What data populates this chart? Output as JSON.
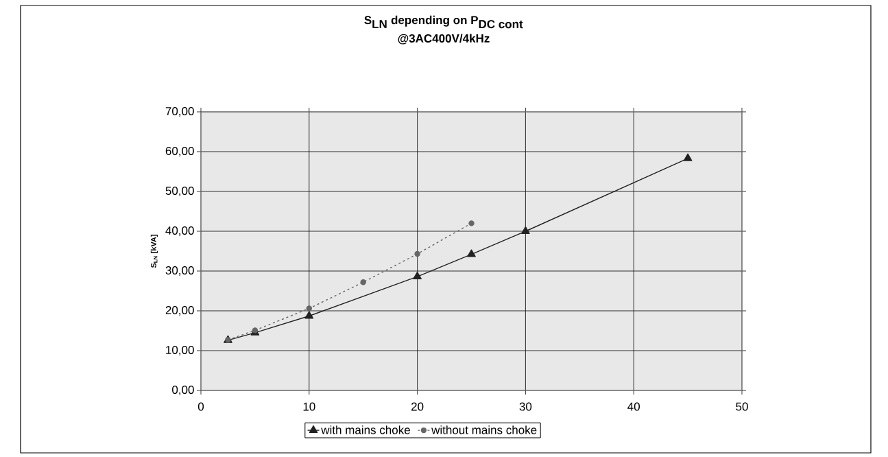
{
  "chart_data": {
    "type": "line",
    "title": "\\textbf{S}_{\\textbf{LN}}\\textbf{ depending on P}_{\\textbf{DC cont}}",
    "subtitle": "@3AC400V/4kHz",
    "ylabel": "S$_{LN}$ [kVA]",
    "xlim": [
      0,
      50
    ],
    "xticks": [
      0,
      10,
      20,
      30,
      40,
      50
    ],
    "ylim": [
      0,
      70
    ],
    "yticks": [
      {
        "value": 0,
        "label": "0,00"
      },
      {
        "value": 10,
        "label": "10,00"
      },
      {
        "value": 20,
        "label": "20,00"
      },
      {
        "value": 30,
        "label": "30,00"
      },
      {
        "value": 40,
        "label": "40,00"
      },
      {
        "value": 50,
        "label": "50,00"
      },
      {
        "value": 60,
        "label": "60,00"
      },
      {
        "value": 70,
        "label": "70,00"
      }
    ],
    "grid": true,
    "legend": "bottom",
    "series": [
      {
        "name": "with mains choke",
        "color": "#222222",
        "marker": "triangle",
        "line_style": "solid",
        "x": [
          2.5,
          5,
          10,
          20,
          25,
          30,
          45
        ],
        "values": [
          12.6,
          14.5,
          18.7,
          28.6,
          34.2,
          40.0,
          58.3
        ]
      },
      {
        "name": "without mains choke",
        "color": "#666666",
        "marker": "circle",
        "line_style": "dotted",
        "x": [
          2.5,
          5,
          10,
          15,
          20,
          25
        ],
        "values": [
          12.7,
          15.1,
          20.6,
          27.2,
          34.3,
          42.0
        ]
      }
    ]
  }
}
